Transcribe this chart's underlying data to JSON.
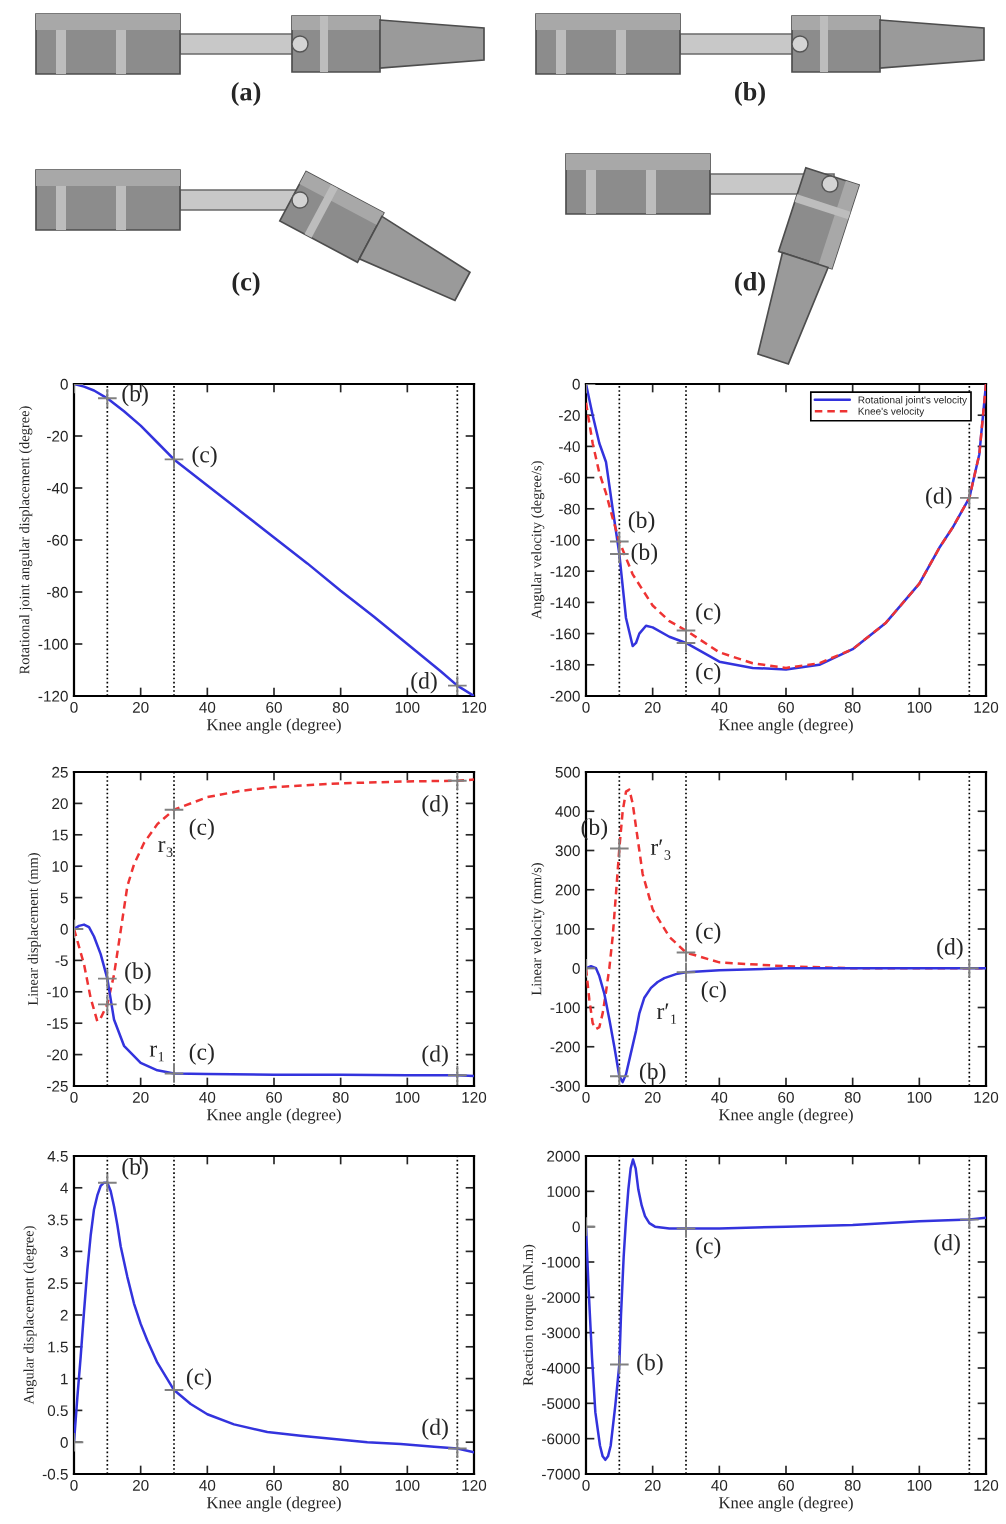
{
  "chart_data": [
    {
      "type": "other",
      "annotations": [
        "(a)",
        "(b)",
        "(c)",
        "(d)"
      ]
    },
    {
      "type": "line",
      "xlabel": "Knee angle (degree)",
      "ylabel": "Rotational joint angular displacement (degree)",
      "xlim": [
        0,
        120
      ],
      "xticks": [
        0,
        20,
        40,
        60,
        80,
        100,
        120
      ],
      "ylim": [
        -120,
        0
      ],
      "yticks": [
        -120,
        -100,
        -80,
        -60,
        -40,
        -20,
        0
      ],
      "series": [
        {
          "color": "#3333dd",
          "x": [
            0,
            3,
            6,
            10,
            12,
            15,
            20,
            25,
            30,
            40,
            50,
            60,
            70,
            80,
            90,
            100,
            110,
            115,
            120
          ],
          "values": [
            0,
            -1,
            -2.5,
            -5.5,
            -7.5,
            -10.5,
            -16,
            -22.5,
            -29,
            -39,
            -49,
            -59,
            -69,
            -79.5,
            -89.5,
            -100,
            -110.5,
            -116,
            -120
          ]
        },
        {
          "type": "scatter",
          "marker": "cross",
          "color": "#808080",
          "x": [
            0,
            10,
            30,
            115
          ],
          "values": [
            0,
            -5.5,
            -29,
            -116
          ]
        }
      ],
      "ref_lines": [
        {
          "axis": "x",
          "value": 10,
          "color": "#000000",
          "line_style": "dotted"
        },
        {
          "axis": "x",
          "value": 30,
          "color": "#000000",
          "line_style": "dotted"
        },
        {
          "axis": "x",
          "value": 115,
          "color": "#000000",
          "line_style": "dotted"
        }
      ],
      "annotations": [
        {
          "text": "(b)",
          "x": 10,
          "y": -5.5
        },
        {
          "text": "(c)",
          "x": 30,
          "y": -29
        },
        {
          "text": "(d)",
          "x": 115,
          "y": -116
        }
      ]
    },
    {
      "type": "line",
      "xlabel": "Knee angle (degree)",
      "ylabel": "Angular velocity (degree/s)",
      "xlim": [
        0,
        120
      ],
      "xticks": [
        0,
        20,
        40,
        60,
        80,
        100,
        120
      ],
      "ylim": [
        -200,
        0
      ],
      "yticks": [
        -200,
        -180,
        -160,
        -140,
        -120,
        -100,
        -80,
        -60,
        -40,
        -20,
        0
      ],
      "legend": "top right",
      "series": [
        {
          "name": "Rotational joint's velocity",
          "color": "#3333dd",
          "x": [
            0,
            2,
            4,
            6,
            8,
            10,
            12,
            14,
            15,
            16,
            18,
            20,
            25,
            30,
            40,
            50,
            60,
            70,
            80,
            90,
            100,
            106,
            110,
            115,
            118,
            120
          ],
          "values": [
            0,
            -20,
            -38,
            -50,
            -80,
            -109,
            -150,
            -168,
            -166,
            -160,
            -155,
            -156,
            -162,
            -166,
            -178,
            -182,
            -183,
            -180,
            -170,
            -153,
            -128,
            -105,
            -92,
            -73,
            -45,
            0
          ]
        },
        {
          "name": "Knee's velocity",
          "color": "#ee3333",
          "line_style": "dashed",
          "x": [
            0,
            2,
            4,
            6,
            8,
            10,
            14,
            20,
            25,
            30,
            40,
            50,
            60,
            70,
            80,
            90,
            100,
            106,
            110,
            115,
            118,
            120
          ],
          "values": [
            -12,
            -38,
            -57,
            -70,
            -86,
            -101,
            -122,
            -142,
            -152,
            -158,
            -172,
            -179,
            -182,
            -179,
            -170,
            -153,
            -128,
            -105,
            -92,
            -73,
            -45,
            0
          ]
        },
        {
          "type": "scatter",
          "marker": "cross",
          "color": "#808080",
          "x": [
            0,
            10,
            10,
            30,
            30,
            115
          ],
          "values": [
            0,
            -101,
            -109,
            -158,
            -166,
            -73
          ]
        }
      ],
      "ref_lines": [
        {
          "axis": "x",
          "value": 10,
          "color": "#000000",
          "line_style": "dotted"
        },
        {
          "axis": "x",
          "value": 30,
          "color": "#000000",
          "line_style": "dotted"
        },
        {
          "axis": "x",
          "value": 115,
          "color": "#000000",
          "line_style": "dotted"
        }
      ],
      "annotations": [
        {
          "text": "(b)",
          "x": 10,
          "y": -101
        },
        {
          "text": "(b)",
          "x": 10,
          "y": -109
        },
        {
          "text": "(c)",
          "x": 30,
          "y": -158
        },
        {
          "text": "(c)",
          "x": 30,
          "y": -166
        },
        {
          "text": "(d)",
          "x": 115,
          "y": -73
        }
      ]
    },
    {
      "type": "line",
      "xlabel": "Knee angle (degree)",
      "ylabel": "Linear displacement (mm)",
      "xlim": [
        0,
        120
      ],
      "xticks": [
        0,
        20,
        40,
        60,
        80,
        100,
        120
      ],
      "ylim": [
        -25,
        25
      ],
      "yticks": [
        -25,
        -20,
        -15,
        -10,
        -5,
        0,
        5,
        10,
        15,
        20,
        25
      ],
      "series": [
        {
          "color": "#ee3333",
          "line_style": "dashed",
          "x": [
            0,
            3,
            5,
            7,
            8,
            10,
            12,
            14,
            16,
            18,
            21,
            25,
            30,
            40,
            50,
            60,
            80,
            100,
            115,
            120
          ],
          "values": [
            0,
            -5.6,
            -11,
            -14.7,
            -14.2,
            -12,
            -7.3,
            -0.3,
            6.8,
            10.3,
            13.7,
            16.7,
            19,
            21,
            22,
            22.6,
            23.2,
            23.5,
            23.6,
            23.8
          ]
        },
        {
          "color": "#3333dd",
          "x": [
            0,
            1.5,
            3,
            4.5,
            6,
            8,
            10,
            12,
            15,
            20,
            25,
            30,
            40,
            60,
            80,
            100,
            115,
            120
          ],
          "values": [
            0,
            0.5,
            0.7,
            0.3,
            -1.2,
            -4,
            -7.9,
            -14.4,
            -18.6,
            -21.3,
            -22.5,
            -23,
            -23.1,
            -23.2,
            -23.2,
            -23.3,
            -23.3,
            -23.4
          ]
        },
        {
          "type": "scatter",
          "marker": "cross",
          "color": "#808080",
          "x": [
            0,
            10,
            10,
            30,
            30,
            115,
            115
          ],
          "values": [
            0,
            -7.9,
            -12,
            19,
            -23,
            23.6,
            -23.3
          ]
        }
      ],
      "ref_lines": [
        {
          "axis": "x",
          "value": 10,
          "color": "#000000",
          "line_style": "dotted"
        },
        {
          "axis": "x",
          "value": 30,
          "color": "#000000",
          "line_style": "dotted"
        },
        {
          "axis": "x",
          "value": 115,
          "color": "#000000",
          "line_style": "dotted"
        }
      ],
      "annotations": [
        {
          "text": "(b)",
          "x": 10,
          "y": -7.9
        },
        {
          "text": "(b)",
          "x": 10,
          "y": -12
        },
        {
          "text": "r₃",
          "x": 25,
          "y": 16.7
        },
        {
          "text": "(c)",
          "x": 30,
          "y": 19
        },
        {
          "text": "r₁",
          "x": 25,
          "y": -22.5
        },
        {
          "text": "(c)",
          "x": 30,
          "y": -23
        },
        {
          "text": "(d)",
          "x": 115,
          "y": 23.6
        },
        {
          "text": "(d)",
          "x": 115,
          "y": -23.3
        }
      ]
    },
    {
      "type": "line",
      "xlabel": "Knee angle (degree)",
      "ylabel": "Linear velocity (mm/s)",
      "xlim": [
        0,
        120
      ],
      "xticks": [
        0,
        20,
        40,
        60,
        80,
        100,
        120
      ],
      "ylim": [
        -300,
        500
      ],
      "yticks": [
        -300,
        -200,
        -100,
        0,
        100,
        200,
        300,
        400,
        500
      ],
      "series": [
        {
          "color": "#ee3333",
          "line_style": "dashed",
          "x": [
            0,
            1,
            2,
            3,
            4,
            5,
            6,
            7,
            8,
            9,
            10,
            11,
            12,
            13,
            14,
            15,
            17,
            20,
            25,
            30,
            40,
            60,
            80,
            100,
            120
          ],
          "values": [
            0,
            -80,
            -140,
            -155,
            -150,
            -115,
            -60,
            0,
            80,
            190,
            305,
            400,
            450,
            455,
            420,
            360,
            240,
            150,
            80,
            40,
            15,
            5,
            0,
            0,
            0
          ]
        },
        {
          "color": "#3333dd",
          "x": [
            0,
            1.5,
            3,
            4,
            5.5,
            7,
            8.5,
            10,
            11,
            12,
            13.5,
            15,
            16,
            17.5,
            19.5,
            21.5,
            23.5,
            27,
            30,
            40,
            60,
            80,
            100,
            120
          ],
          "values": [
            0,
            5,
            0,
            -20,
            -65,
            -130,
            -200,
            -275,
            -290,
            -270,
            -215,
            -160,
            -115,
            -75,
            -50,
            -35,
            -25,
            -15,
            -10,
            -5,
            0,
            0,
            0,
            0
          ]
        },
        {
          "type": "scatter",
          "marker": "cross",
          "color": "#808080",
          "x": [
            0,
            10,
            10,
            30,
            30,
            115
          ],
          "values": [
            0,
            305,
            -275,
            40,
            -10,
            0
          ]
        }
      ],
      "ref_lines": [
        {
          "axis": "x",
          "value": 10,
          "color": "#000000",
          "line_style": "dotted"
        },
        {
          "axis": "x",
          "value": 30,
          "color": "#000000",
          "line_style": "dotted"
        },
        {
          "axis": "x",
          "value": 115,
          "color": "#000000",
          "line_style": "dotted"
        }
      ],
      "annotations": [
        {
          "text": "(b)",
          "x": 10,
          "y": 305
        },
        {
          "text": "r′₃",
          "x": 15,
          "y": 360
        },
        {
          "text": "(c)",
          "x": 30,
          "y": 40
        },
        {
          "text": "(c)",
          "x": 30,
          "y": -10
        },
        {
          "text": "(d)",
          "x": 115,
          "y": 0
        },
        {
          "text": "r′₁",
          "x": 16,
          "y": -115
        },
        {
          "text": "(b)",
          "x": 10,
          "y": -275
        }
      ]
    },
    {
      "type": "line",
      "xlabel": "Knee angle (degree)",
      "ylabel": "Angular displacement (degree)",
      "xlim": [
        0,
        120
      ],
      "xticks": [
        0,
        20,
        40,
        60,
        80,
        100,
        120
      ],
      "ylim": [
        -0.5,
        4.5
      ],
      "yticks": [
        -0.5,
        0,
        0.5,
        1,
        1.5,
        2,
        2.5,
        3,
        3.5,
        4,
        4.5
      ],
      "series": [
        {
          "color": "#3333dd",
          "x": [
            0,
            1,
            2,
            3,
            4,
            5,
            6,
            7,
            8,
            9,
            10,
            11,
            12,
            13,
            14,
            16,
            18,
            20,
            22,
            25,
            30,
            35,
            40,
            48,
            58,
            68,
            78,
            88,
            98,
            108,
            115,
            120
          ],
          "values": [
            0,
            0.7,
            1.34,
            2.05,
            2.71,
            3.25,
            3.66,
            3.88,
            4.03,
            4.08,
            4.08,
            3.95,
            3.71,
            3.42,
            3.08,
            2.6,
            2.18,
            1.86,
            1.6,
            1.25,
            0.82,
            0.6,
            0.44,
            0.28,
            0.16,
            0.1,
            0.05,
            0,
            -0.03,
            -0.07,
            -0.1,
            -0.16
          ]
        },
        {
          "type": "scatter",
          "marker": "cross",
          "color": "#808080",
          "x": [
            0,
            10,
            30,
            115
          ],
          "values": [
            0,
            4.08,
            0.82,
            -0.1
          ]
        }
      ],
      "ref_lines": [
        {
          "axis": "x",
          "value": 10,
          "color": "#000000",
          "line_style": "dotted"
        },
        {
          "axis": "x",
          "value": 30,
          "color": "#000000",
          "line_style": "dotted"
        },
        {
          "axis": "x",
          "value": 115,
          "color": "#000000",
          "line_style": "dotted"
        }
      ],
      "annotations": [
        {
          "text": "(b)",
          "x": 10,
          "y": 4.08
        },
        {
          "text": "(c)",
          "x": 30,
          "y": 0.82
        },
        {
          "text": "(d)",
          "x": 115,
          "y": -0.1
        }
      ]
    },
    {
      "type": "line",
      "xlabel": "Knee angle (degree)",
      "ylabel": "Reaction torque (mN.m)",
      "xlim": [
        0,
        120
      ],
      "xticks": [
        0,
        20,
        40,
        60,
        80,
        100,
        120
      ],
      "ylim": [
        -7000,
        2000
      ],
      "yticks": [
        -7000,
        -6000,
        -5000,
        -4000,
        -3000,
        -2000,
        -1000,
        0,
        1000,
        2000
      ],
      "series": [
        {
          "color": "#3333dd",
          "x": [
            0,
            0.8,
            1.8,
            2.8,
            4.2,
            5,
            5.8,
            6.6,
            7.4,
            8.8,
            10,
            10.5,
            11.3,
            12,
            12.7,
            13.4,
            14.1,
            14.9,
            15.7,
            16.7,
            17.7,
            19,
            20.7,
            25,
            30,
            40,
            60,
            80,
            100,
            115,
            120
          ],
          "values": [
            0,
            -1800,
            -3700,
            -5250,
            -6200,
            -6500,
            -6600,
            -6500,
            -6200,
            -5050,
            -3900,
            -2500,
            -850,
            200,
            1050,
            1650,
            1900,
            1650,
            1050,
            600,
            300,
            100,
            0,
            -50,
            -50,
            -50,
            0,
            50,
            150,
            200,
            250
          ]
        },
        {
          "type": "scatter",
          "marker": "cross",
          "color": "#808080",
          "x": [
            0,
            10,
            30,
            115
          ],
          "values": [
            0,
            -3900,
            -50,
            200
          ]
        }
      ],
      "ref_lines": [
        {
          "axis": "x",
          "value": 10,
          "color": "#000000",
          "line_style": "dotted"
        },
        {
          "axis": "x",
          "value": 30,
          "color": "#000000",
          "line_style": "dotted"
        },
        {
          "axis": "x",
          "value": 115,
          "color": "#000000",
          "line_style": "dotted"
        }
      ],
      "annotations": [
        {
          "text": "(b)",
          "x": 10,
          "y": -3900
        },
        {
          "text": "(c)",
          "x": 30,
          "y": -50
        },
        {
          "text": "(d)",
          "x": 115,
          "y": 200
        }
      ]
    }
  ]
}
